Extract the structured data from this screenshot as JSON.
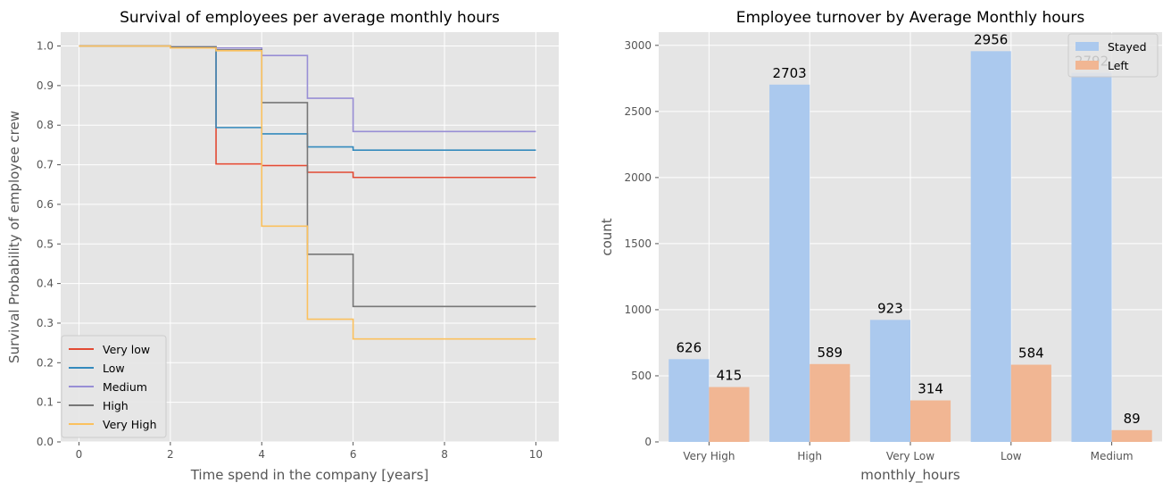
{
  "chart_data": [
    {
      "type": "line",
      "title": "Survival of employees per average monthly hours",
      "xlabel": "Time spend in the company [years]",
      "ylabel": "Survival Probability of employee crew",
      "xlim": [
        -0.4,
        10.5
      ],
      "ylim": [
        0.0,
        1.035
      ],
      "xticks": [
        0,
        2,
        4,
        6,
        8,
        10
      ],
      "xtick_labels": [
        "0",
        "2",
        "4",
        "6",
        "8",
        "10"
      ],
      "yticks": [
        0.0,
        0.1,
        0.2,
        0.3,
        0.4,
        0.5,
        0.6,
        0.7,
        0.8,
        0.9,
        1.0
      ],
      "ytick_labels": [
        "0.0",
        "0.1",
        "0.2",
        "0.3",
        "0.4",
        "0.5",
        "0.6",
        "0.7",
        "0.8",
        "0.9",
        "1.0"
      ],
      "grid": true,
      "step": "post",
      "legend_position": "lower-left",
      "series": [
        {
          "name": "Very low",
          "color": "#e24a33",
          "x": [
            0,
            2,
            3,
            4,
            5,
            6,
            10
          ],
          "y": [
            1.0,
            0.997,
            0.702,
            0.698,
            0.681,
            0.668,
            0.668
          ]
        },
        {
          "name": "Low",
          "color": "#348abd",
          "x": [
            0,
            2,
            3,
            4,
            5,
            6,
            10
          ],
          "y": [
            1.0,
            0.998,
            0.794,
            0.778,
            0.745,
            0.737,
            0.737
          ]
        },
        {
          "name": "Medium",
          "color": "#988ed5",
          "x": [
            0,
            2,
            3,
            4,
            5,
            6,
            10
          ],
          "y": [
            1.0,
            0.998,
            0.995,
            0.976,
            0.868,
            0.784,
            0.784
          ]
        },
        {
          "name": "High",
          "color": "#777777",
          "x": [
            0,
            2,
            3,
            4,
            5,
            6,
            10
          ],
          "y": [
            1.0,
            0.998,
            0.99,
            0.857,
            0.474,
            0.342,
            0.342
          ]
        },
        {
          "name": "Very High",
          "color": "#fbc15e",
          "x": [
            0,
            2,
            3,
            4,
            5,
            6,
            10
          ],
          "y": [
            1.0,
            0.995,
            0.988,
            0.545,
            0.31,
            0.26,
            0.26
          ]
        }
      ]
    },
    {
      "type": "bar",
      "title": "Employee turnover by Average Monthly hours",
      "xlabel": "monthly_hours",
      "ylabel": "count",
      "ylim": [
        0,
        3100
      ],
      "yticks": [
        0,
        500,
        1000,
        1500,
        2000,
        2500,
        3000
      ],
      "ytick_labels": [
        "0",
        "500",
        "1000",
        "1500",
        "2000",
        "2500",
        "3000"
      ],
      "grid": true,
      "legend_position": "top-right",
      "categories": [
        "Very High",
        "High",
        "Very Low",
        "Low",
        "Medium"
      ],
      "series": [
        {
          "name": "Stayed",
          "color": "#abc9ee",
          "values": [
            626,
            2703,
            923,
            2956,
            2792
          ],
          "labels": [
            "626",
            "2703",
            "923",
            "2956",
            "2792"
          ]
        },
        {
          "name": "Left",
          "color": "#f1b693",
          "values": [
            415,
            589,
            314,
            584,
            89
          ],
          "labels": [
            "415",
            "589",
            "314",
            "584",
            "89"
          ]
        }
      ]
    }
  ]
}
